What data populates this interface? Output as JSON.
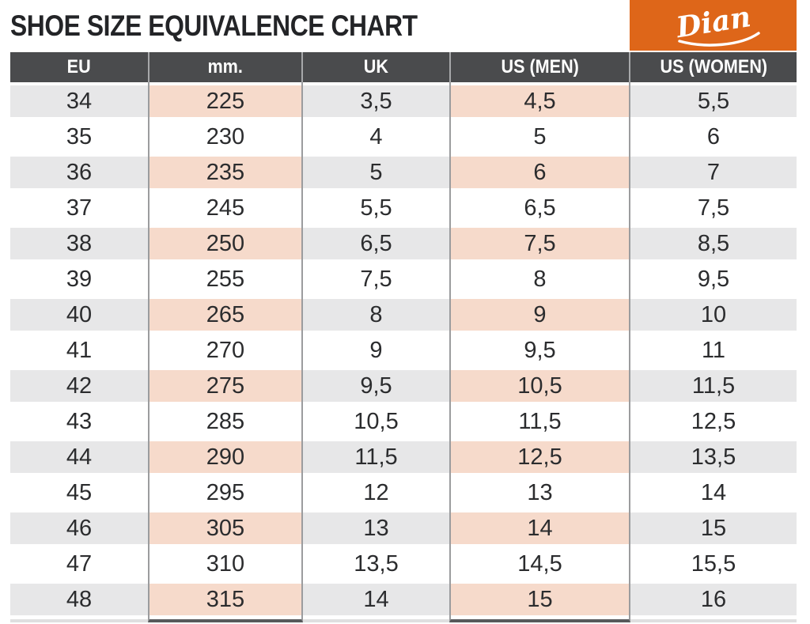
{
  "page": {
    "title": "SHOE SIZE EQUIVALENCE CHART"
  },
  "brand": {
    "name": "Dian"
  },
  "colors": {
    "accent": "#DE6619",
    "header_bg": "#4A4B4D",
    "row_stripe": "#E7E7E8",
    "row_highlight": "#F6DACB",
    "grid_line": "#9B9C9E",
    "underline": "#58595B",
    "title_color": "#232427"
  },
  "table": {
    "columns": [
      {
        "key": "eu",
        "label": "EU",
        "highlight": false
      },
      {
        "key": "mm",
        "label": "mm.",
        "highlight": true
      },
      {
        "key": "uk",
        "label": "UK",
        "highlight": false
      },
      {
        "key": "us_men",
        "label": "US (MEN)",
        "highlight": true
      },
      {
        "key": "us_women",
        "label": "US (WOMEN)",
        "highlight": false
      }
    ],
    "rows": [
      [
        "34",
        "225",
        "3,5",
        "4,5",
        "5,5"
      ],
      [
        "35",
        "230",
        "4",
        "5",
        "6"
      ],
      [
        "36",
        "235",
        "5",
        "6",
        "7"
      ],
      [
        "37",
        "245",
        "5,5",
        "6,5",
        "7,5"
      ],
      [
        "38",
        "250",
        "6,5",
        "7,5",
        "8,5"
      ],
      [
        "39",
        "255",
        "7,5",
        "8",
        "9,5"
      ],
      [
        "40",
        "265",
        "8",
        "9",
        "10"
      ],
      [
        "41",
        "270",
        "9",
        "9,5",
        "11"
      ],
      [
        "42",
        "275",
        "9,5",
        "10,5",
        "11,5"
      ],
      [
        "43",
        "285",
        "10,5",
        "11,5",
        "12,5"
      ],
      [
        "44",
        "290",
        "11,5",
        "12,5",
        "13,5"
      ],
      [
        "45",
        "295",
        "12",
        "13",
        "14"
      ],
      [
        "46",
        "305",
        "13",
        "14",
        "15"
      ],
      [
        "47",
        "310",
        "13,5",
        "14,5",
        "15,5"
      ],
      [
        "48",
        "315",
        "14",
        "15",
        "16"
      ]
    ]
  },
  "chart_data": {
    "type": "table",
    "title": "SHOE SIZE EQUIVALENCE CHART",
    "columns": [
      "EU",
      "mm.",
      "UK",
      "US (MEN)",
      "US (WOMEN)"
    ],
    "rows": [
      [
        "34",
        "225",
        "3,5",
        "4,5",
        "5,5"
      ],
      [
        "35",
        "230",
        "4",
        "5",
        "6"
      ],
      [
        "36",
        "235",
        "5",
        "6",
        "7"
      ],
      [
        "37",
        "245",
        "5,5",
        "6,5",
        "7,5"
      ],
      [
        "38",
        "250",
        "6,5",
        "7,5",
        "8,5"
      ],
      [
        "39",
        "255",
        "7,5",
        "8",
        "9,5"
      ],
      [
        "40",
        "265",
        "8",
        "9",
        "10"
      ],
      [
        "41",
        "270",
        "9",
        "9,5",
        "11"
      ],
      [
        "42",
        "275",
        "9,5",
        "10,5",
        "11,5"
      ],
      [
        "43",
        "285",
        "10,5",
        "11,5",
        "12,5"
      ],
      [
        "44",
        "290",
        "11,5",
        "12,5",
        "13,5"
      ],
      [
        "45",
        "295",
        "12",
        "13",
        "14"
      ],
      [
        "46",
        "305",
        "13",
        "14",
        "15"
      ],
      [
        "47",
        "310",
        "13,5",
        "14,5",
        "15,5"
      ],
      [
        "48",
        "315",
        "14",
        "15",
        "16"
      ]
    ],
    "layout_hints": {
      "striped_rows": true,
      "highlighted_columns": [
        "mm.",
        "US (MEN)"
      ],
      "header_position": "top"
    }
  }
}
